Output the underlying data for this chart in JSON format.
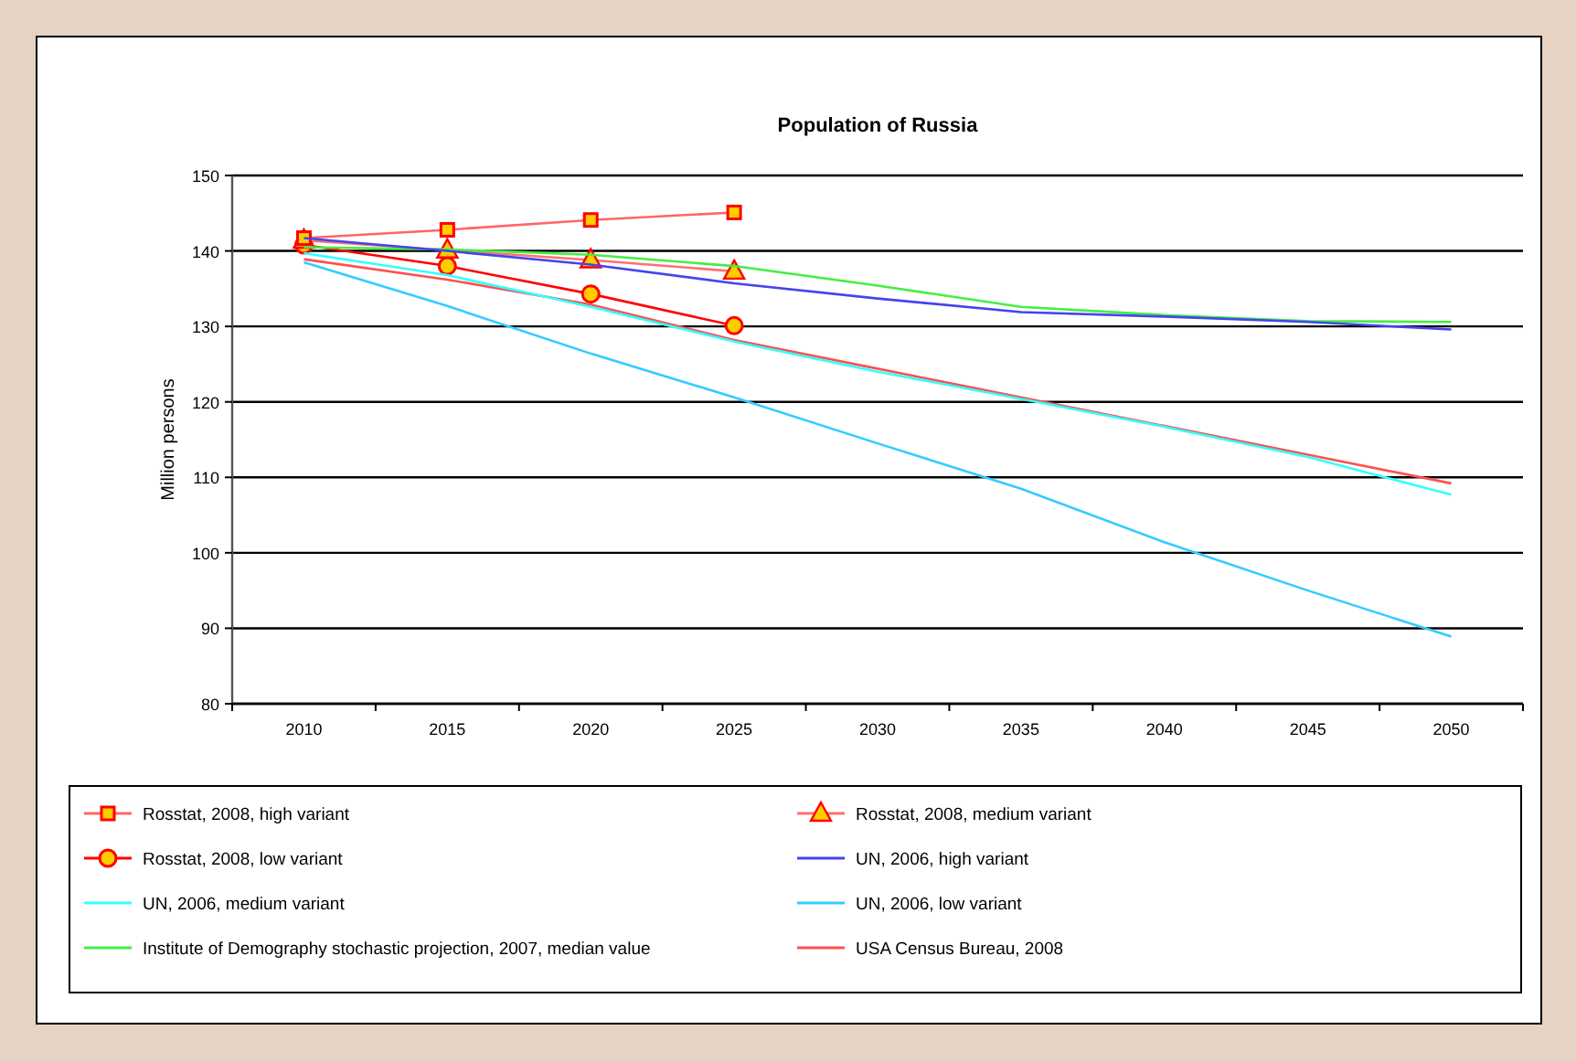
{
  "chart_data": {
    "type": "line",
    "title": "Population of Russia",
    "ylabel": "Million persons",
    "categories": [
      "2010",
      "2015",
      "2020",
      "2025",
      "2030",
      "2035",
      "2040",
      "2045",
      "2050"
    ],
    "ylim": [
      80,
      150
    ],
    "yticks": [
      80,
      90,
      100,
      110,
      120,
      130,
      140,
      150
    ],
    "grid": "y",
    "legend": "bottom",
    "line_style": "solid",
    "series": [
      {
        "name": "Rosstat, 2008, high variant",
        "color": "#ff6666",
        "marker": "square",
        "values": [
          141.7,
          142.8,
          144.1,
          145.1,
          null,
          null,
          null,
          null,
          null
        ]
      },
      {
        "name": "Rosstat, 2008, medium variant",
        "color": "#ff7070",
        "marker": "triangle",
        "values": [
          141.4,
          140.1,
          138.8,
          137.3,
          null,
          null,
          null,
          null,
          null
        ]
      },
      {
        "name": "Rosstat, 2008, low variant",
        "color": "#ff0000",
        "marker": "circle",
        "values": [
          140.8,
          138.0,
          134.3,
          130.1,
          null,
          null,
          null,
          null,
          null
        ]
      },
      {
        "name": "UN, 2006, high variant",
        "color": "#4444ee",
        "marker": "none",
        "values": [
          141.7,
          140.0,
          138.2,
          135.7,
          133.7,
          131.9,
          131.3,
          130.6,
          129.6
        ]
      },
      {
        "name": "UN, 2006, medium variant",
        "color": "#33ffff",
        "marker": "none",
        "values": [
          139.7,
          136.8,
          132.6,
          128.0,
          124.0,
          120.4,
          116.7,
          112.7,
          107.7
        ]
      },
      {
        "name": "UN, 2006, low variant",
        "color": "#33ccff",
        "marker": "none",
        "values": [
          138.5,
          132.7,
          126.4,
          120.6,
          114.5,
          108.5,
          101.4,
          95.0,
          88.9
        ]
      },
      {
        "name": "Institute of Demography stochastic projection, 2007, median value",
        "color": "#44ee44",
        "marker": "none",
        "values": [
          140.5,
          140.2,
          139.5,
          138.0,
          135.4,
          132.6,
          131.5,
          130.7,
          130.6
        ]
      },
      {
        "name": "USA Census Bureau, 2008",
        "color": "#ff5050",
        "marker": "none",
        "values": [
          138.9,
          136.2,
          132.9,
          128.2,
          124.4,
          120.6,
          116.8,
          113.0,
          109.2
        ]
      }
    ]
  }
}
